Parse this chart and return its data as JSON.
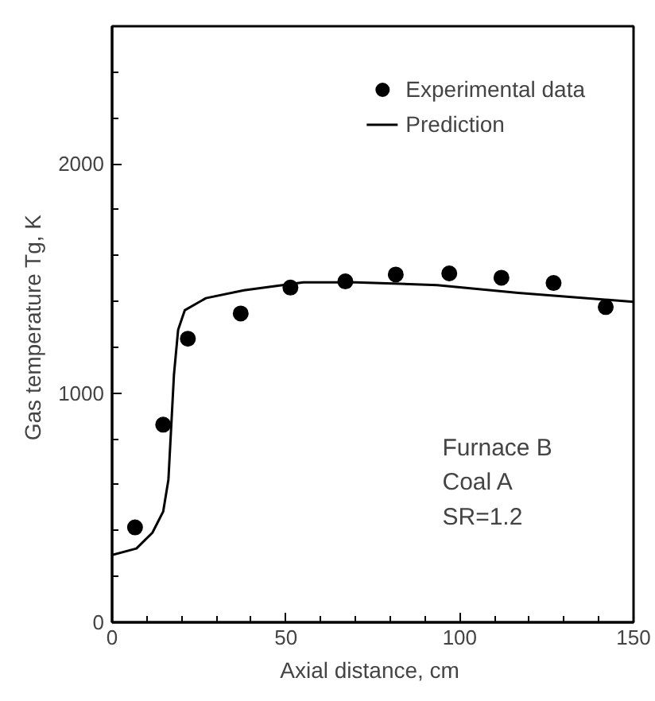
{
  "chart_data": {
    "type": "line",
    "xlabel": "Axial distance,  cm",
    "ylabel": "Gas temperature  Tg, K",
    "xlim": [
      0,
      150
    ],
    "ylim": [
      0,
      2600
    ],
    "xticks": [
      0,
      50,
      100,
      150
    ],
    "yticks": [
      0,
      1000,
      2000
    ],
    "grid": false,
    "legend": "top right",
    "annotations": [
      "Furnace B",
      "Coal A",
      "SR=1.2"
    ],
    "series": [
      {
        "name": "Experimental data",
        "type": "scatter",
        "marker": "circle",
        "color": "#000000",
        "x": [
          6.6,
          14.7,
          21.8,
          37,
          51.3,
          67.1,
          81.6,
          97,
          112,
          127,
          142
        ],
        "values": [
          414,
          862,
          1237,
          1347,
          1460,
          1487,
          1517,
          1522,
          1503,
          1480,
          1375
        ]
      },
      {
        "name": "Prediction",
        "line_style": "solid",
        "color": "#000000",
        "x": [
          0,
          7,
          11.6,
          14.7,
          16.2,
          17.8,
          19,
          20.9,
          27,
          37.9,
          55,
          70,
          93.5,
          116.8,
          150
        ],
        "values": [
          294,
          322,
          391,
          483,
          621,
          1080,
          1276,
          1361,
          1414,
          1448,
          1483,
          1483,
          1471,
          1437,
          1398
        ]
      }
    ]
  }
}
